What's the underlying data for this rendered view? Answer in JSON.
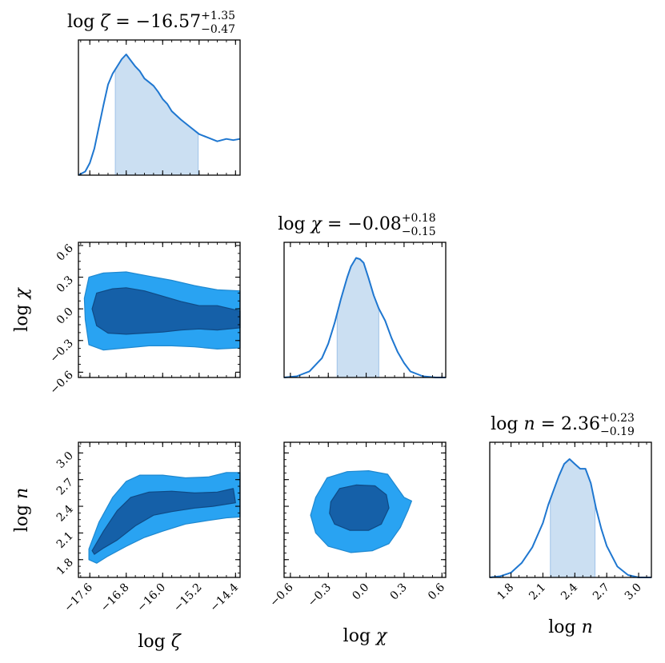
{
  "chart_data": {
    "type": "corner",
    "colors": {
      "line": "#1f77d0",
      "fill": "#cbdff2",
      "inner": "#1560a8",
      "outer": "#29a3f2",
      "axis": "#000000"
    },
    "parameters": [
      {
        "key": "zeta",
        "label_base": "log ",
        "label_sym": "ζ",
        "title_main": " = −16.57",
        "title_sup": "+1.35",
        "title_sub": "−0.47",
        "median": -16.57,
        "lower": -17.04,
        "upper": -15.22,
        "range": [
          -17.85,
          -14.3
        ],
        "ticks": [
          -17.6,
          -16.8,
          -16.0,
          -15.2,
          -14.4
        ],
        "tick_labels": [
          "−17.6",
          "−16.8",
          "−16.0",
          "−15.2",
          "−14.4"
        ],
        "hist_x": [
          -17.85,
          -17.7,
          -17.6,
          -17.5,
          -17.4,
          -17.3,
          -17.2,
          -17.1,
          -17.0,
          -16.9,
          -16.8,
          -16.7,
          -16.6,
          -16.5,
          -16.4,
          -16.3,
          -16.2,
          -16.1,
          -16.0,
          -15.9,
          -15.8,
          -15.6,
          -15.4,
          -15.2,
          -15.0,
          -14.8,
          -14.6,
          -14.45,
          -14.3
        ],
        "hist_y": [
          0.0,
          0.03,
          0.1,
          0.22,
          0.4,
          0.58,
          0.75,
          0.84,
          0.9,
          0.96,
          1.0,
          0.95,
          0.9,
          0.86,
          0.8,
          0.77,
          0.74,
          0.69,
          0.63,
          0.59,
          0.53,
          0.46,
          0.4,
          0.34,
          0.31,
          0.28,
          0.3,
          0.29,
          0.3
        ]
      },
      {
        "key": "chi",
        "label_base": "log ",
        "label_sym": "χ",
        "title_main": " = −0.08",
        "title_sup": "+0.18",
        "title_sub": "−0.15",
        "median": -0.08,
        "lower": -0.23,
        "upper": 0.1,
        "range": [
          -0.65,
          0.63
        ],
        "ticks": [
          -0.6,
          -0.3,
          0.0,
          0.3,
          0.6
        ],
        "tick_labels": [
          "−0.6",
          "−0.3",
          "0.0",
          "0.3",
          "0.6"
        ],
        "hist_x": [
          -0.65,
          -0.55,
          -0.45,
          -0.35,
          -0.3,
          -0.25,
          -0.2,
          -0.15,
          -0.12,
          -0.08,
          -0.05,
          -0.02,
          0.02,
          0.06,
          0.1,
          0.15,
          0.2,
          0.25,
          0.3,
          0.35,
          0.45,
          0.55,
          0.63
        ],
        "hist_y": [
          0.0,
          0.01,
          0.05,
          0.16,
          0.28,
          0.45,
          0.65,
          0.83,
          0.92,
          0.99,
          0.98,
          0.95,
          0.82,
          0.68,
          0.57,
          0.47,
          0.33,
          0.21,
          0.12,
          0.05,
          0.01,
          0.0,
          0.0
        ]
      },
      {
        "key": "n",
        "label_base": "log ",
        "label_sym": "n",
        "title_main": " = 2.36",
        "title_sup": "+0.23",
        "title_sub": "−0.19",
        "median": 2.36,
        "lower": 2.17,
        "upper": 2.59,
        "range": [
          1.6,
          3.12
        ],
        "ticks": [
          1.8,
          2.1,
          2.4,
          2.7,
          3.0
        ],
        "tick_labels": [
          "1.8",
          "2.1",
          "2.4",
          "2.7",
          "3.0"
        ],
        "hist_x": [
          1.6,
          1.7,
          1.8,
          1.9,
          2.0,
          2.05,
          2.1,
          2.15,
          2.2,
          2.25,
          2.3,
          2.35,
          2.4,
          2.45,
          2.5,
          2.55,
          2.6,
          2.65,
          2.7,
          2.8,
          2.9,
          3.0,
          3.12
        ],
        "hist_y": [
          0.0,
          0.01,
          0.04,
          0.12,
          0.25,
          0.35,
          0.45,
          0.6,
          0.72,
          0.84,
          0.94,
          0.98,
          0.94,
          0.9,
          0.9,
          0.78,
          0.57,
          0.4,
          0.26,
          0.09,
          0.02,
          0.0,
          0.0
        ]
      }
    ],
    "contours": [
      {
        "x": "zeta",
        "y": "chi",
        "outer": [
          [
            -17.62,
            0.3
          ],
          [
            -17.3,
            0.34
          ],
          [
            -16.8,
            0.35
          ],
          [
            -16.3,
            0.31
          ],
          [
            -15.8,
            0.27
          ],
          [
            -15.3,
            0.22
          ],
          [
            -14.8,
            0.18
          ],
          [
            -14.3,
            0.17
          ],
          [
            -14.3,
            -0.37
          ],
          [
            -14.8,
            -0.38
          ],
          [
            -15.3,
            -0.36
          ],
          [
            -15.8,
            -0.35
          ],
          [
            -16.3,
            -0.35
          ],
          [
            -16.8,
            -0.37
          ],
          [
            -17.3,
            -0.39
          ],
          [
            -17.62,
            -0.34
          ],
          [
            -17.7,
            -0.1
          ],
          [
            -17.72,
            0.1
          ]
        ],
        "inner": [
          [
            -17.45,
            0.15
          ],
          [
            -17.1,
            0.19
          ],
          [
            -16.8,
            0.2
          ],
          [
            -16.4,
            0.17
          ],
          [
            -16.0,
            0.12
          ],
          [
            -15.6,
            0.07
          ],
          [
            -15.2,
            0.03
          ],
          [
            -14.8,
            0.03
          ],
          [
            -14.3,
            -0.02
          ],
          [
            -14.3,
            -0.18
          ],
          [
            -14.8,
            -0.2
          ],
          [
            -15.2,
            -0.19
          ],
          [
            -15.6,
            -0.2
          ],
          [
            -16.0,
            -0.22
          ],
          [
            -16.4,
            -0.23
          ],
          [
            -16.8,
            -0.24
          ],
          [
            -17.2,
            -0.23
          ],
          [
            -17.45,
            -0.16
          ],
          [
            -17.55,
            0.0
          ]
        ]
      },
      {
        "x": "zeta",
        "y": "n",
        "outer": [
          [
            -17.62,
            1.92
          ],
          [
            -17.4,
            2.22
          ],
          [
            -17.1,
            2.5
          ],
          [
            -16.8,
            2.68
          ],
          [
            -16.5,
            2.75
          ],
          [
            -16.0,
            2.75
          ],
          [
            -15.5,
            2.72
          ],
          [
            -15.0,
            2.73
          ],
          [
            -14.6,
            2.78
          ],
          [
            -14.3,
            2.78
          ],
          [
            -14.3,
            2.28
          ],
          [
            -14.6,
            2.27
          ],
          [
            -15.0,
            2.24
          ],
          [
            -15.5,
            2.2
          ],
          [
            -16.0,
            2.12
          ],
          [
            -16.4,
            2.05
          ],
          [
            -16.8,
            1.95
          ],
          [
            -17.2,
            1.84
          ],
          [
            -17.45,
            1.76
          ],
          [
            -17.62,
            1.8
          ]
        ],
        "inner": [
          [
            -17.55,
            1.9
          ],
          [
            -17.3,
            2.12
          ],
          [
            -17.0,
            2.35
          ],
          [
            -16.7,
            2.5
          ],
          [
            -16.3,
            2.56
          ],
          [
            -15.8,
            2.57
          ],
          [
            -15.3,
            2.55
          ],
          [
            -14.8,
            2.56
          ],
          [
            -14.45,
            2.6
          ],
          [
            -14.4,
            2.44
          ],
          [
            -14.9,
            2.4
          ],
          [
            -15.3,
            2.38
          ],
          [
            -15.8,
            2.34
          ],
          [
            -16.2,
            2.3
          ],
          [
            -16.6,
            2.18
          ],
          [
            -17.0,
            2.02
          ],
          [
            -17.3,
            1.93
          ],
          [
            -17.5,
            1.86
          ]
        ]
      },
      {
        "x": "chi",
        "y": "n",
        "outer": [
          [
            -0.4,
            2.5
          ],
          [
            -0.31,
            2.72
          ],
          [
            -0.15,
            2.79
          ],
          [
            0.02,
            2.8
          ],
          [
            0.17,
            2.76
          ],
          [
            0.24,
            2.62
          ],
          [
            0.3,
            2.5
          ],
          [
            0.36,
            2.46
          ],
          [
            0.33,
            2.35
          ],
          [
            0.27,
            2.16
          ],
          [
            0.18,
            1.98
          ],
          [
            0.05,
            1.9
          ],
          [
            -0.12,
            1.88
          ],
          [
            -0.3,
            1.95
          ],
          [
            -0.4,
            2.1
          ],
          [
            -0.44,
            2.3
          ]
        ],
        "inner": [
          [
            -0.28,
            2.45
          ],
          [
            -0.21,
            2.6
          ],
          [
            -0.08,
            2.64
          ],
          [
            0.07,
            2.63
          ],
          [
            0.16,
            2.53
          ],
          [
            0.18,
            2.38
          ],
          [
            0.12,
            2.2
          ],
          [
            0.02,
            2.13
          ],
          [
            -0.13,
            2.13
          ],
          [
            -0.25,
            2.2
          ],
          [
            -0.29,
            2.32
          ]
        ]
      }
    ]
  }
}
